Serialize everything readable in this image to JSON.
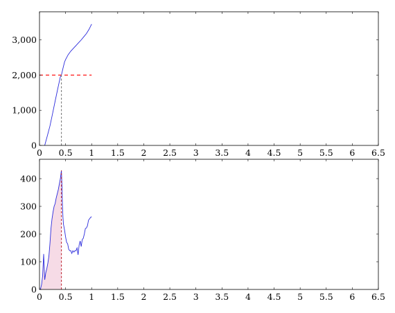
{
  "chart_data": [
    {
      "type": "line",
      "panel": "top",
      "xlim": [
        0,
        6.5
      ],
      "ylim": [
        0,
        3800
      ],
      "x_ticks": [
        0,
        0.5,
        1,
        1.5,
        2,
        2.5,
        3,
        3.5,
        4,
        4.5,
        5,
        5.5,
        6,
        6.5
      ],
      "x_tick_labels": [
        "0",
        "0.5",
        "1",
        "1.5",
        "2",
        "2.5",
        "3",
        "3.5",
        "4",
        "4.5",
        "5",
        "5.5",
        "6",
        "6.5"
      ],
      "y_ticks": [
        0,
        1000,
        2000,
        3000
      ],
      "y_tick_labels": [
        "0",
        "1,000",
        "2,000",
        "3,000"
      ],
      "grid": false,
      "series": [
        {
          "color": "#2b2bdc",
          "x": [
            0.1,
            0.15,
            0.2,
            0.25,
            0.3,
            0.35,
            0.4,
            0.42,
            0.45,
            0.48,
            0.5,
            0.55,
            0.6,
            0.65,
            0.7,
            0.75,
            0.8,
            0.85,
            0.9,
            0.95,
            1.0
          ],
          "y": [
            0,
            270,
            550,
            900,
            1260,
            1610,
            1950,
            2000,
            2190,
            2370,
            2440,
            2580,
            2680,
            2760,
            2840,
            2920,
            3000,
            3090,
            3180,
            3300,
            3450
          ]
        }
      ],
      "reference_lines": [
        {
          "orientation": "horizontal",
          "value": 2000,
          "x_range": [
            0,
            1.0
          ],
          "color": "#ff0000"
        },
        {
          "orientation": "vertical",
          "value": 0.42,
          "color": "#7a7a7a"
        }
      ]
    },
    {
      "type": "area",
      "panel": "bottom",
      "xlim": [
        0,
        6.5
      ],
      "ylim": [
        0,
        470
      ],
      "x_ticks": [
        0,
        0.5,
        1,
        1.5,
        2,
        2.5,
        3,
        3.5,
        4,
        4.5,
        5,
        5.5,
        6,
        6.5
      ],
      "x_tick_labels": [
        "0",
        "0.5",
        "1",
        "1.5",
        "2",
        "2.5",
        "3",
        "3.5",
        "4",
        "4.5",
        "5",
        "5.5",
        "6",
        "6.5"
      ],
      "y_ticks": [
        0,
        100,
        200,
        300,
        400
      ],
      "y_tick_labels": [
        "0",
        "100",
        "200",
        "300",
        "400"
      ],
      "grid": false,
      "series": [
        {
          "color": "#2b2bdc",
          "x": [
            0.0,
            0.02,
            0.04,
            0.06,
            0.08,
            0.1,
            0.12,
            0.14,
            0.16,
            0.18,
            0.2,
            0.22,
            0.24,
            0.26,
            0.28,
            0.3,
            0.32,
            0.34,
            0.36,
            0.38,
            0.4,
            0.42,
            0.43,
            0.44,
            0.45,
            0.46,
            0.48,
            0.5,
            0.52,
            0.54,
            0.56,
            0.58,
            0.6,
            0.62,
            0.64,
            0.66,
            0.68,
            0.7,
            0.72,
            0.74,
            0.76,
            0.78,
            0.8,
            0.82,
            0.84,
            0.86,
            0.88,
            0.9,
            0.92,
            0.94,
            0.96,
            0.98,
            1.0
          ],
          "y": [
            0,
            2,
            18,
            50,
            128,
            35,
            60,
            75,
            95,
            120,
            165,
            220,
            255,
            280,
            300,
            310,
            330,
            345,
            360,
            380,
            400,
            430,
            380,
            305,
            260,
            235,
            215,
            190,
            170,
            165,
            145,
            140,
            140,
            130,
            140,
            135,
            140,
            140,
            150,
            125,
            160,
            175,
            155,
            180,
            185,
            200,
            220,
            222,
            230,
            250,
            255,
            260,
            263
          ]
        }
      ],
      "shaded_region": {
        "x_range": [
          0,
          0.42
        ],
        "color": "#f6dbe6"
      },
      "reference_lines": [
        {
          "orientation": "vertical",
          "value": 0.42,
          "color": "#c0303a"
        }
      ]
    }
  ]
}
